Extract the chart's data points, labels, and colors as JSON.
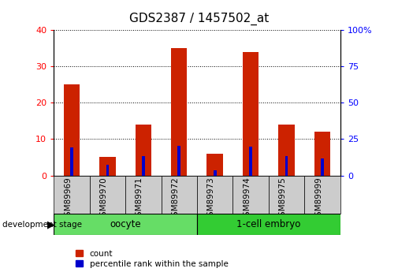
{
  "title": "GDS2387 / 1457502_at",
  "samples": [
    "GSM89969",
    "GSM89970",
    "GSM89971",
    "GSM89972",
    "GSM89973",
    "GSM89974",
    "GSM89975",
    "GSM89999"
  ],
  "counts": [
    25,
    5,
    14,
    35,
    6,
    34,
    14,
    12
  ],
  "percentiles": [
    19,
    7.5,
    13.5,
    20.5,
    3.5,
    20,
    13.5,
    11.5
  ],
  "groups": [
    {
      "label": "oocyte",
      "start": 0,
      "end": 4,
      "color": "#66dd66"
    },
    {
      "label": "1-cell embryo",
      "start": 4,
      "end": 8,
      "color": "#33cc33"
    }
  ],
  "left_ylim": [
    0,
    40
  ],
  "right_ylim": [
    0,
    100
  ],
  "left_yticks": [
    0,
    10,
    20,
    30,
    40
  ],
  "right_yticks": [
    0,
    25,
    50,
    75,
    100
  ],
  "right_yticklabels": [
    "0",
    "25",
    "50",
    "75",
    "100%"
  ],
  "bar_color_red": "#cc2200",
  "bar_color_blue": "#0000cc",
  "red_bar_width": 0.45,
  "blue_bar_width": 0.08,
  "group_bg_color": "#cccccc",
  "title_fontsize": 11,
  "tick_label_fontsize": 8,
  "legend_label_count": "count",
  "legend_label_percentile": "percentile rank within the sample",
  "development_stage_label": "development stage"
}
